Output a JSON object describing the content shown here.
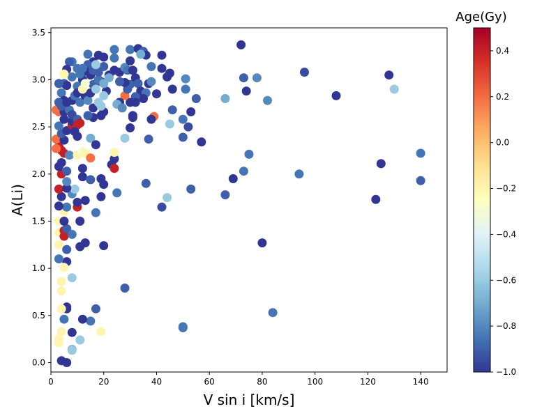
{
  "chart_data": {
    "type": "scatter",
    "title": "",
    "xlabel": "V sin i [km/s]",
    "ylabel": "A(Li)",
    "xlim": [
      0,
      150
    ],
    "ylim": [
      -0.1,
      3.55
    ],
    "x_ticks": [
      0,
      20,
      40,
      60,
      80,
      100,
      120,
      140
    ],
    "y_ticks": [
      0.0,
      0.5,
      1.0,
      1.5,
      2.0,
      2.5,
      3.0,
      3.5
    ],
    "y_tick_labels": [
      "0.0",
      "0.5",
      "1.0",
      "1.5",
      "2.0",
      "2.5",
      "3.0",
      "3.5"
    ],
    "grid": false,
    "colorbar": {
      "title": "Age(Gy)",
      "colormap": "RdYlBu_r",
      "range": [
        -1.0,
        0.5
      ],
      "ticks": [
        0.4,
        0.2,
        0.0,
        -0.2,
        -0.4,
        -0.6,
        -0.8,
        -1.0
      ],
      "tick_labels": [
        "0.4",
        "0.2",
        "0.0",
        "−0.2",
        "−0.4",
        "−0.6",
        "−0.8",
        "−1.0"
      ]
    },
    "points": [
      [
        72,
        3.37,
        -1.0
      ],
      [
        96,
        3.08,
        -0.95
      ],
      [
        128,
        3.05,
        -1.0
      ],
      [
        130,
        2.9,
        -0.6
      ],
      [
        108,
        2.83,
        -1.0
      ],
      [
        78,
        3.02,
        -0.8
      ],
      [
        82,
        2.78,
        -0.8
      ],
      [
        66,
        2.8,
        -0.7
      ],
      [
        73,
        3.02,
        -0.9
      ],
      [
        74,
        2.88,
        -1.0
      ],
      [
        75,
        2.21,
        -0.85
      ],
      [
        73,
        2.03,
        -0.85
      ],
      [
        69,
        1.95,
        -1.0
      ],
      [
        66,
        1.78,
        -0.9
      ],
      [
        94,
        2.0,
        -0.85
      ],
      [
        125,
        2.11,
        -1.0
      ],
      [
        140,
        2.22,
        -0.85
      ],
      [
        140,
        1.93,
        -0.9
      ],
      [
        123,
        1.73,
        -1.0
      ],
      [
        80,
        1.27,
        -1.0
      ],
      [
        84,
        0.53,
        -0.85
      ],
      [
        50,
        0.38,
        -0.85
      ],
      [
        50,
        0.37,
        -0.85
      ],
      [
        28,
        0.79,
        -0.9
      ],
      [
        42,
        1.65,
        -0.95
      ],
      [
        44,
        1.75,
        -0.6
      ],
      [
        53,
        1.84,
        -0.9
      ],
      [
        57,
        2.34,
        -1.0
      ],
      [
        50,
        2.39,
        -0.9
      ],
      [
        52,
        2.5,
        -0.95
      ],
      [
        53,
        2.66,
        -1.0
      ],
      [
        50,
        2.58,
        -0.85
      ],
      [
        45,
        2.53,
        -0.6
      ],
      [
        46,
        2.68,
        -0.9
      ],
      [
        55,
        2.8,
        -0.9
      ],
      [
        51,
        2.9,
        -0.85
      ],
      [
        51,
        3.01,
        -0.8
      ],
      [
        42,
        3.26,
        -1.0
      ],
      [
        45,
        3.07,
        -1.0
      ],
      [
        44,
        3.03,
        -1.0
      ],
      [
        46,
        2.9,
        -1.0
      ],
      [
        42,
        3.12,
        -1.0
      ],
      [
        40,
        2.85,
        -1.0
      ],
      [
        37,
        2.37,
        -0.9
      ],
      [
        36,
        1.9,
        -0.9
      ],
      [
        39,
        2.61,
        0.2
      ],
      [
        38,
        2.58,
        -1.0
      ],
      [
        30,
        2.49,
        -1.0
      ],
      [
        31,
        2.62,
        -1.0
      ],
      [
        28,
        2.38,
        -0.6
      ],
      [
        25,
        1.8,
        -0.85
      ],
      [
        23,
        2.1,
        -1.0
      ],
      [
        24,
        2.06,
        0.4
      ],
      [
        24,
        2.16,
        -1.0
      ],
      [
        24,
        2.23,
        -0.2
      ],
      [
        20,
        1.89,
        -1.0
      ],
      [
        19,
        1.95,
        -1.0
      ],
      [
        19,
        1.76,
        -1.0
      ],
      [
        17,
        1.59,
        -0.85
      ],
      [
        20,
        1.24,
        -1.0
      ],
      [
        17,
        0.57,
        -0.9
      ],
      [
        15,
        0.44,
        -0.85
      ],
      [
        12,
        0.46,
        -1.0
      ],
      [
        11,
        0.24,
        -0.6
      ],
      [
        19,
        0.33,
        -0.2
      ],
      [
        8,
        0.32,
        -1.0
      ],
      [
        8,
        0.14,
        -0.7
      ],
      [
        8,
        0.13,
        -0.6
      ],
      [
        6,
        0.0,
        -1.0
      ],
      [
        4,
        0.02,
        -1.0
      ],
      [
        6,
        0.59,
        -1.0
      ],
      [
        6,
        0.57,
        -1.0
      ],
      [
        5,
        0.46,
        -0.85
      ],
      [
        4,
        0.76,
        -0.2
      ],
      [
        4,
        0.86,
        -0.2
      ],
      [
        3,
        0.25,
        -0.2
      ],
      [
        3,
        0.21,
        -0.2
      ],
      [
        4,
        0.33,
        -0.2
      ],
      [
        4,
        0.57,
        -0.2
      ],
      [
        8,
        0.9,
        -0.6
      ],
      [
        6,
        1.07,
        -1.0
      ],
      [
        5,
        1.01,
        -0.2
      ],
      [
        3,
        1.1,
        -0.85
      ],
      [
        6,
        1.2,
        -0.9
      ],
      [
        3,
        1.25,
        -0.2
      ],
      [
        3,
        1.38,
        -0.2
      ],
      [
        5,
        1.34,
        0.4
      ],
      [
        5,
        1.4,
        0.4
      ],
      [
        6,
        1.42,
        -0.9
      ],
      [
        8,
        1.36,
        -0.85
      ],
      [
        3,
        1.5,
        -0.2
      ],
      [
        5,
        1.5,
        -1.0
      ],
      [
        5,
        1.6,
        -0.2
      ],
      [
        6,
        1.65,
        -0.85
      ],
      [
        3,
        1.66,
        -1.0
      ],
      [
        10,
        1.65,
        0.4
      ],
      [
        10,
        1.7,
        -1.0
      ],
      [
        13,
        1.72,
        -1.0
      ],
      [
        11,
        1.5,
        -1.0
      ],
      [
        13,
        1.27,
        -1.0
      ],
      [
        11,
        1.23,
        -1.0
      ],
      [
        8,
        1.79,
        -0.8
      ],
      [
        9,
        1.84,
        -0.6
      ],
      [
        4,
        1.76,
        -1.0
      ],
      [
        3,
        1.84,
        0.4
      ],
      [
        6,
        1.85,
        -1.0
      ],
      [
        6,
        1.92,
        -0.8
      ],
      [
        4,
        2.0,
        0.4
      ],
      [
        6,
        2.03,
        -0.9
      ],
      [
        3,
        2.08,
        -1.0
      ],
      [
        4,
        2.12,
        -1.0
      ],
      [
        5,
        2.22,
        0.4
      ],
      [
        7,
        2.2,
        -0.8
      ],
      [
        4,
        2.25,
        0.4
      ],
      [
        3,
        2.29,
        0.4
      ],
      [
        2,
        2.27,
        0.2
      ],
      [
        2,
        2.37,
        0.2
      ],
      [
        5,
        2.36,
        -1.0
      ],
      [
        4,
        2.43,
        -0.9
      ],
      [
        6,
        2.46,
        -1.0
      ],
      [
        8,
        2.52,
        0.4
      ],
      [
        8,
        2.56,
        -1.0
      ],
      [
        3,
        2.51,
        -0.85
      ],
      [
        5,
        2.58,
        -1.0
      ],
      [
        3,
        2.66,
        0.2
      ],
      [
        2,
        2.68,
        0.2
      ],
      [
        5,
        2.66,
        -1.0
      ],
      [
        7,
        2.68,
        -0.85
      ],
      [
        8,
        2.63,
        -0.95
      ],
      [
        10,
        2.58,
        -0.9
      ],
      [
        10,
        2.52,
        0.4
      ],
      [
        11,
        2.54,
        0.4
      ],
      [
        10,
        2.4,
        -1.0
      ],
      [
        9,
        2.45,
        -1.0
      ],
      [
        10,
        2.2,
        -0.2
      ],
      [
        12,
        2.24,
        -0.3
      ],
      [
        13,
        2.22,
        -0.2
      ],
      [
        12,
        2.06,
        -1.0
      ],
      [
        12,
        1.97,
        -1.0
      ],
      [
        15,
        1.94,
        -0.9
      ],
      [
        15,
        2.17,
        0.2
      ],
      [
        15,
        2.38,
        -0.7
      ],
      [
        17,
        2.31,
        -1.0
      ],
      [
        16,
        2.6,
        -1.0
      ],
      [
        14,
        2.62,
        -0.9
      ],
      [
        16,
        2.7,
        -1.0
      ],
      [
        19,
        2.62,
        -1.0
      ],
      [
        20,
        2.66,
        -1.0
      ],
      [
        19,
        2.72,
        -0.6
      ],
      [
        21,
        2.88,
        -1.0
      ],
      [
        19,
        2.98,
        -1.0
      ],
      [
        20,
        3.14,
        -0.9
      ],
      [
        22,
        3.05,
        -1.0
      ],
      [
        24,
        3.1,
        -1.0
      ],
      [
        24,
        3.23,
        -0.85
      ],
      [
        24,
        3.32,
        -0.85
      ],
      [
        20,
        3.24,
        -1.0
      ],
      [
        18,
        3.26,
        -1.0
      ],
      [
        16,
        3.19,
        -1.0
      ],
      [
        14,
        3.27,
        -0.85
      ],
      [
        14,
        3.16,
        -0.9
      ],
      [
        13,
        3.09,
        -1.0
      ],
      [
        12,
        3.12,
        -0.85
      ],
      [
        12,
        3.0,
        -1.0
      ],
      [
        10,
        3.12,
        -0.85
      ],
      [
        10,
        2.93,
        -0.85
      ],
      [
        8,
        3.03,
        -0.85
      ],
      [
        8,
        3.19,
        -0.85
      ],
      [
        7,
        3.19,
        -0.9
      ],
      [
        6,
        3.11,
        -1.0
      ],
      [
        5,
        3.06,
        -0.2
      ],
      [
        5,
        2.96,
        -0.9
      ],
      [
        6,
        2.94,
        -1.0
      ],
      [
        3,
        2.96,
        -0.9
      ],
      [
        4,
        2.86,
        -0.85
      ],
      [
        5,
        2.78,
        -1.0
      ],
      [
        3,
        2.76,
        -0.9
      ],
      [
        4,
        2.72,
        -0.9
      ],
      [
        6,
        2.76,
        -1.0
      ],
      [
        8,
        2.78,
        -1.0
      ],
      [
        9,
        2.83,
        -0.85
      ],
      [
        10,
        2.86,
        -1.0
      ],
      [
        11,
        2.76,
        -0.85
      ],
      [
        13,
        2.83,
        -1.0
      ],
      [
        14,
        2.78,
        -0.8
      ],
      [
        15,
        2.86,
        -1.0
      ],
      [
        16,
        2.95,
        -0.9
      ],
      [
        18,
        3.0,
        -0.85
      ],
      [
        17,
        2.9,
        -0.6
      ],
      [
        20,
        2.96,
        -0.7
      ],
      [
        22,
        3.02,
        -0.7
      ],
      [
        20,
        2.83,
        -0.6
      ],
      [
        18,
        2.76,
        -0.6
      ],
      [
        12,
        2.9,
        -0.2
      ],
      [
        13,
        2.96,
        -0.3
      ],
      [
        11,
        3.06,
        -0.85
      ],
      [
        15,
        3.05,
        -1.0
      ],
      [
        16,
        3.1,
        -0.9
      ],
      [
        18,
        3.08,
        -0.9
      ],
      [
        17,
        3.16,
        -0.6
      ],
      [
        26,
        3.08,
        -1.0
      ],
      [
        28,
        3.13,
        -0.8
      ],
      [
        29,
        3.1,
        -0.85
      ],
      [
        30,
        3.2,
        -1.0
      ],
      [
        30,
        3.32,
        -0.85
      ],
      [
        33,
        3.33,
        -1.0
      ],
      [
        35,
        3.3,
        -0.9
      ],
      [
        36,
        3.26,
        -1.0
      ],
      [
        34,
        3.27,
        -0.7
      ],
      [
        31,
        3.1,
        -1.0
      ],
      [
        32,
        3.02,
        -1.0
      ],
      [
        33,
        2.96,
        -0.9
      ],
      [
        34,
        2.88,
        -1.0
      ],
      [
        36,
        2.86,
        -0.85
      ],
      [
        37,
        2.96,
        -1.0
      ],
      [
        38,
        2.98,
        -0.8
      ],
      [
        35,
        2.8,
        -1.0
      ],
      [
        32,
        2.82,
        -0.9
      ],
      [
        30,
        2.76,
        -1.0
      ],
      [
        28,
        2.83,
        0.2
      ],
      [
        26,
        2.76,
        -1.0
      ],
      [
        25,
        2.74,
        -0.7
      ],
      [
        27,
        2.7,
        -0.8
      ],
      [
        29,
        2.9,
        -0.9
      ],
      [
        32,
        2.76,
        -1.0
      ],
      [
        31,
        2.6,
        -1.0
      ],
      [
        30,
        2.95,
        -0.9
      ],
      [
        28,
        2.97,
        -1.0
      ],
      [
        38,
        3.14,
        -0.85
      ],
      [
        26,
        2.98,
        -0.9
      ]
    ]
  }
}
